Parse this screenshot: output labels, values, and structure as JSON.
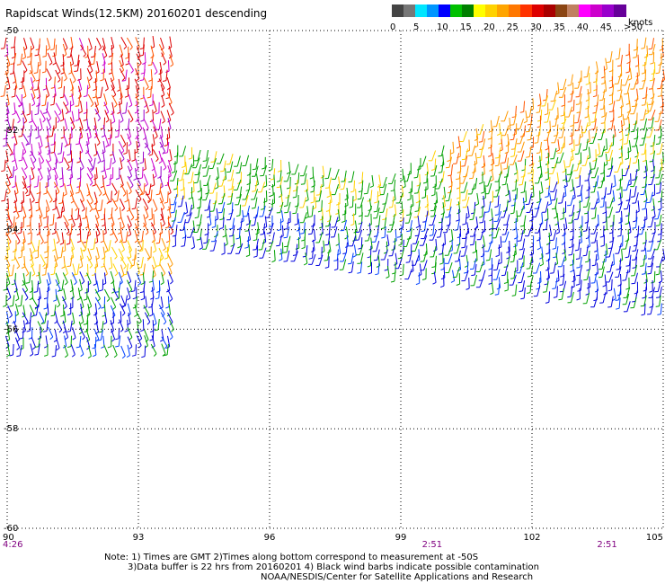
{
  "title": "Rapidscat Winds(12.5KM) 20160201 descending",
  "colorbar": {
    "units": "knots",
    "labels": [
      "0",
      "5",
      "10",
      "15",
      "20",
      "25",
      "30",
      "35",
      "40",
      "45",
      ">50"
    ],
    "colors": [
      "#444444",
      "#777777",
      "#00e6ff",
      "#0096ff",
      "#0000ff",
      "#00c000",
      "#008000",
      "#ffff00",
      "#ffd200",
      "#ffa500",
      "#ff7700",
      "#ff3300",
      "#dd0000",
      "#aa0000",
      "#8b4513",
      "#c08060",
      "#ff00ff",
      "#cc00cc",
      "#9900cc",
      "#660099"
    ]
  },
  "map": {
    "lon_ticks": [
      "90",
      "93",
      "96",
      "99",
      "102",
      "105"
    ],
    "lat_ticks": [
      "-50",
      "-52",
      "-54",
      "-56",
      "-58",
      "-60"
    ],
    "lon_range": [
      90,
      105
    ],
    "lat_range": [
      -60,
      -50
    ],
    "grid": true,
    "times": [
      {
        "label": "4:26",
        "lon": 90
      },
      {
        "label": "2:51",
        "lon": 100
      },
      {
        "label": "2:51",
        "lon": 104
      }
    ]
  },
  "notes": [
    "Note: 1) Times are GMT 2)Times along bottom correspond to measurement at -50S",
    "3)Data buffer is 22 hrs from 20160201 4) Black wind barbs indicate possible contamination",
    "NOAA/NESDIS/Center for Satellite Applications and Research"
  ]
}
